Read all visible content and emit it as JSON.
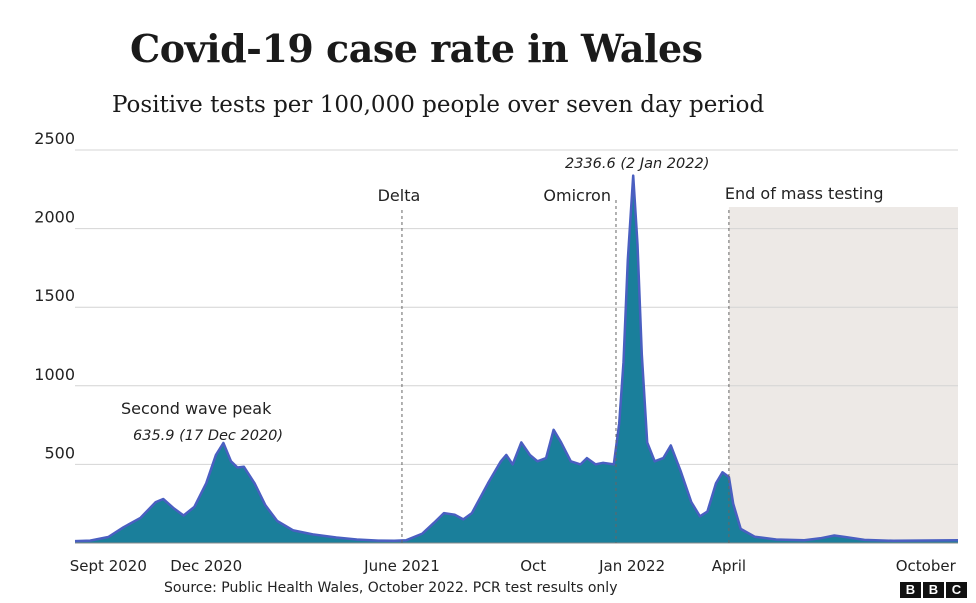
{
  "chart_data": {
    "type": "area",
    "title": "Covid-19 case rate in Wales",
    "subtitle": "Positive tests per 100,000 people over seven day period",
    "xlabel": "",
    "ylabel": "",
    "ylim": [
      0,
      2500
    ],
    "yticks": [
      500,
      1000,
      1500,
      2000,
      2500
    ],
    "xlim": [
      "2020-08-01",
      "2022-10-31"
    ],
    "xticks": [
      {
        "date": "2020-09-01",
        "label": "Sept 2020"
      },
      {
        "date": "2020-12-01",
        "label": "Dec 2020"
      },
      {
        "date": "2021-06-01",
        "label": "June 2021"
      },
      {
        "date": "2021-10-01",
        "label": "Oct"
      },
      {
        "date": "2022-01-01",
        "label": "Jan 2022"
      },
      {
        "date": "2022-04-01",
        "label": "April"
      },
      {
        "date": "2022-10-01",
        "label": "October"
      }
    ],
    "series": [
      {
        "values": [
          [
            "2020-08-01",
            12
          ],
          [
            "2020-08-15",
            15
          ],
          [
            "2020-09-01",
            38
          ],
          [
            "2020-09-15",
            100
          ],
          [
            "2020-10-01",
            160
          ],
          [
            "2020-10-15",
            260
          ],
          [
            "2020-10-22",
            280
          ],
          [
            "2020-11-01",
            220
          ],
          [
            "2020-11-10",
            175
          ],
          [
            "2020-11-20",
            230
          ],
          [
            "2020-12-01",
            380
          ],
          [
            "2020-12-10",
            560
          ],
          [
            "2020-12-17",
            636
          ],
          [
            "2020-12-24",
            520
          ],
          [
            "2020-12-30",
            480
          ],
          [
            "2021-01-05",
            485
          ],
          [
            "2021-01-15",
            380
          ],
          [
            "2021-01-25",
            240
          ],
          [
            "2021-02-05",
            140
          ],
          [
            "2021-02-20",
            80
          ],
          [
            "2021-03-10",
            55
          ],
          [
            "2021-04-01",
            35
          ],
          [
            "2021-04-20",
            22
          ],
          [
            "2021-05-10",
            15
          ],
          [
            "2021-05-25",
            14
          ],
          [
            "2021-06-05",
            18
          ],
          [
            "2021-06-20",
            60
          ],
          [
            "2021-07-01",
            130
          ],
          [
            "2021-07-10",
            190
          ],
          [
            "2021-07-20",
            180
          ],
          [
            "2021-07-28",
            150
          ],
          [
            "2021-08-05",
            190
          ],
          [
            "2021-08-20",
            380
          ],
          [
            "2021-09-01",
            520
          ],
          [
            "2021-09-06",
            560
          ],
          [
            "2021-09-12",
            500
          ],
          [
            "2021-09-20",
            640
          ],
          [
            "2021-09-28",
            560
          ],
          [
            "2021-10-05",
            520
          ],
          [
            "2021-10-13",
            540
          ],
          [
            "2021-10-20",
            720
          ],
          [
            "2021-10-27",
            640
          ],
          [
            "2021-11-05",
            520
          ],
          [
            "2021-11-14",
            500
          ],
          [
            "2021-11-20",
            540
          ],
          [
            "2021-11-28",
            500
          ],
          [
            "2021-12-05",
            510
          ],
          [
            "2021-12-15",
            500
          ],
          [
            "2021-12-20",
            760
          ],
          [
            "2021-12-24",
            1150
          ],
          [
            "2021-12-28",
            1800
          ],
          [
            "2022-01-02",
            2337
          ],
          [
            "2022-01-06",
            1900
          ],
          [
            "2022-01-10",
            1200
          ],
          [
            "2022-01-15",
            640
          ],
          [
            "2022-01-22",
            520
          ],
          [
            "2022-01-30",
            540
          ],
          [
            "2022-02-06",
            620
          ],
          [
            "2022-02-15",
            460
          ],
          [
            "2022-02-25",
            260
          ],
          [
            "2022-03-05",
            170
          ],
          [
            "2022-03-12",
            200
          ],
          [
            "2022-03-20",
            380
          ],
          [
            "2022-03-26",
            450
          ],
          [
            "2022-04-01",
            420
          ],
          [
            "2022-04-05",
            250
          ],
          [
            "2022-04-12",
            90
          ],
          [
            "2022-04-25",
            40
          ],
          [
            "2022-05-15",
            22
          ],
          [
            "2022-06-10",
            18
          ],
          [
            "2022-06-25",
            30
          ],
          [
            "2022-07-08",
            48
          ],
          [
            "2022-07-18",
            38
          ],
          [
            "2022-08-05",
            20
          ],
          [
            "2022-09-01",
            14
          ],
          [
            "2022-10-01",
            16
          ],
          [
            "2022-10-31",
            18
          ]
        ]
      }
    ],
    "markers": [
      {
        "date": "2021-06-01",
        "label": "Delta"
      },
      {
        "date": "2021-12-17",
        "label": "Omicron"
      },
      {
        "date": "2022-04-01",
        "label": "End of mass testing"
      }
    ],
    "annotations": [
      {
        "label": "Second wave peak",
        "value_label": "635.9 (17 Dec 2020)"
      },
      {
        "label": "",
        "value_label": "2336.6 (2 Jan 2022)"
      }
    ],
    "shaded_region": [
      "2022-04-01",
      "2022-10-31"
    ],
    "grid": true,
    "colors": {
      "fill": "#1a7f9b",
      "line": "#4a5fc1",
      "shade": "#ede9e6",
      "grid": "#d4d4d4"
    }
  },
  "source": "Source: Public Health Wales, October 2022. PCR test results only",
  "logo": [
    "B",
    "B",
    "C"
  ]
}
